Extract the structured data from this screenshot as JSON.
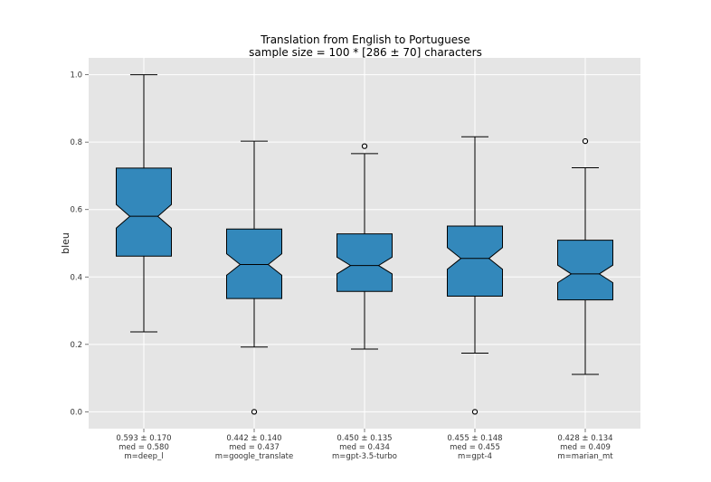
{
  "chart_data": {
    "type": "boxplot",
    "title": "Translation from English to Portuguese",
    "subtitle": "sample size = 100 * [286 ± 70] characters",
    "ylabel": "bleu",
    "xlabel": "",
    "ylim": [
      -0.05,
      1.05
    ],
    "yticks": [
      "0.0",
      "0.2",
      "0.4",
      "0.6",
      "0.8",
      "1.0"
    ],
    "grid": true,
    "colors": {
      "box": "#3388bb",
      "background": "#e5e5e5",
      "grid": "#ffffff"
    },
    "series": [
      {
        "label_lines": [
          "0.593 ± 0.170",
          "med = 0.580",
          "m=deep_l"
        ],
        "whisker_low": 0.237,
        "q1": 0.462,
        "notch_low": 0.545,
        "median": 0.58,
        "notch_high": 0.615,
        "q3": 0.723,
        "whisker_high": 1.0,
        "outliers": []
      },
      {
        "label_lines": [
          "0.442 ± 0.140",
          "med = 0.437",
          "m=google_translate"
        ],
        "whisker_low": 0.192,
        "q1": 0.336,
        "notch_low": 0.405,
        "median": 0.437,
        "notch_high": 0.469,
        "q3": 0.542,
        "whisker_high": 0.803,
        "outliers": [
          0.0
        ]
      },
      {
        "label_lines": [
          "0.450 ± 0.135",
          "med = 0.434",
          "m=gpt-3.5-turbo"
        ],
        "whisker_low": 0.186,
        "q1": 0.357,
        "notch_low": 0.409,
        "median": 0.434,
        "notch_high": 0.459,
        "q3": 0.528,
        "whisker_high": 0.766,
        "outliers": [
          0.788
        ]
      },
      {
        "label_lines": [
          "0.455 ± 0.148",
          "med = 0.455",
          "m=gpt-4"
        ],
        "whisker_low": 0.174,
        "q1": 0.343,
        "notch_low": 0.423,
        "median": 0.455,
        "notch_high": 0.487,
        "q3": 0.551,
        "whisker_high": 0.816,
        "outliers": [
          0.0
        ]
      },
      {
        "label_lines": [
          "0.428 ± 0.134",
          "med = 0.409",
          "m=marian_mt"
        ],
        "whisker_low": 0.111,
        "q1": 0.332,
        "notch_low": 0.383,
        "median": 0.409,
        "notch_high": 0.435,
        "q3": 0.509,
        "whisker_high": 0.724,
        "outliers": [
          0.803
        ]
      }
    ]
  }
}
